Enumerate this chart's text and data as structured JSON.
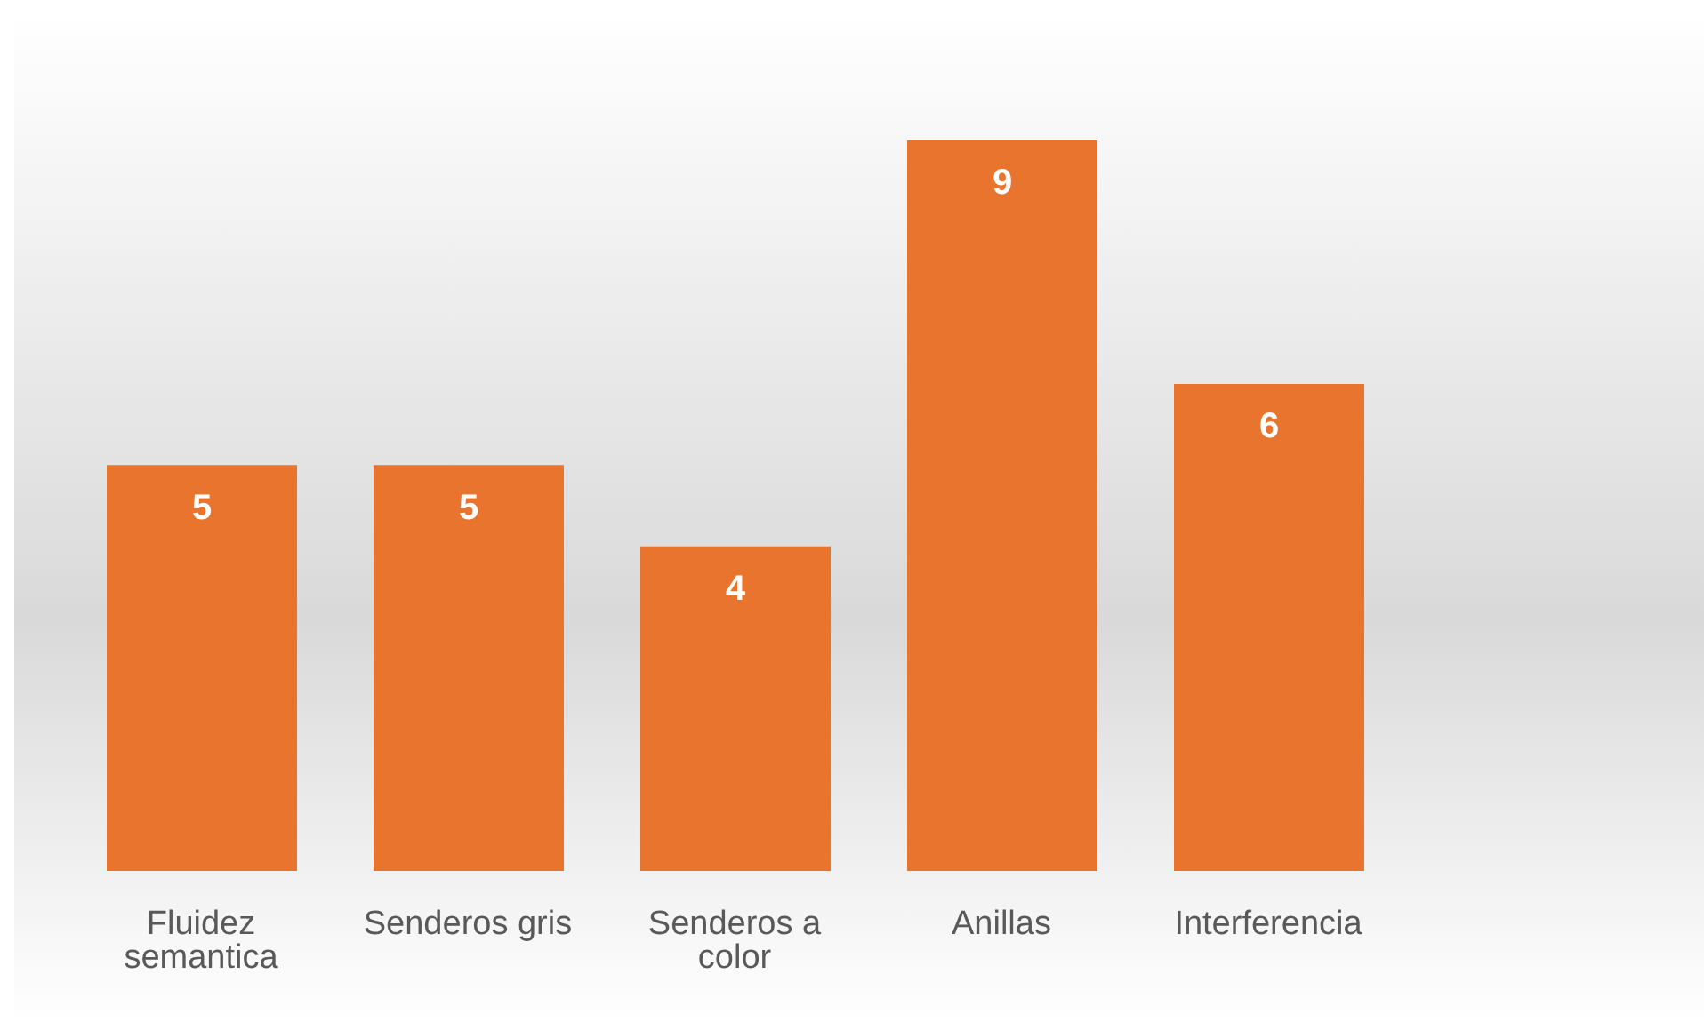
{
  "chart_data": {
    "type": "bar",
    "categories": [
      "Fluidez semantica",
      "Senderos gris",
      "Senderos a color",
      "Anillas",
      "Interferencia"
    ],
    "values": [
      5,
      5,
      4,
      9,
      6
    ],
    "color": "#e8742e",
    "data_labels": true
  }
}
